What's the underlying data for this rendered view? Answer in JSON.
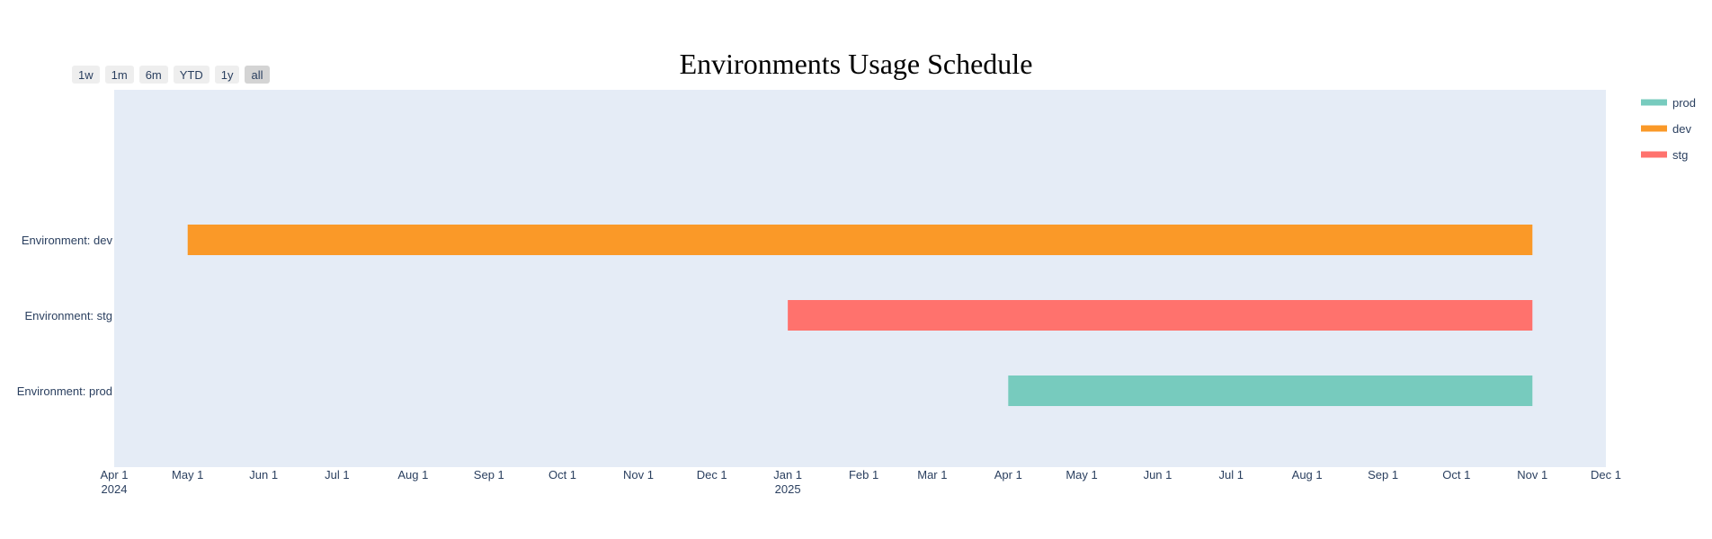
{
  "range_selector": {
    "buttons": [
      "1w",
      "1m",
      "6m",
      "YTD",
      "1y",
      "all"
    ],
    "active": "all"
  },
  "colors": {
    "plot_bg": "#e5ecf6",
    "prod": "#77cbbe",
    "dev": "#fa9928",
    "stg": "#ff726d"
  },
  "chart_data": {
    "type": "gantt",
    "title": "Environments Usage Schedule",
    "xlabel": "",
    "ylabel": "",
    "xlim": [
      "2024-04-01",
      "2024-12-01T00:00:00"
    ],
    "x_range": [
      "2024-04-01",
      "2025-12-01"
    ],
    "x_ticks": [
      {
        "date": "2024-04-01",
        "label": "Apr 1",
        "year": "2024"
      },
      {
        "date": "2024-05-01",
        "label": "May 1"
      },
      {
        "date": "2024-06-01",
        "label": "Jun 1"
      },
      {
        "date": "2024-07-01",
        "label": "Jul 1"
      },
      {
        "date": "2024-08-01",
        "label": "Aug 1"
      },
      {
        "date": "2024-09-01",
        "label": "Sep 1"
      },
      {
        "date": "2024-10-01",
        "label": "Oct 1"
      },
      {
        "date": "2024-11-01",
        "label": "Nov 1"
      },
      {
        "date": "2024-12-01",
        "label": "Dec 1"
      },
      {
        "date": "2025-01-01",
        "label": "Jan 1",
        "year": "2025"
      },
      {
        "date": "2025-02-01",
        "label": "Feb 1"
      },
      {
        "date": "2025-03-01",
        "label": "Mar 1"
      },
      {
        "date": "2025-04-01",
        "label": "Apr 1"
      },
      {
        "date": "2025-05-01",
        "label": "May 1"
      },
      {
        "date": "2025-06-01",
        "label": "Jun 1"
      },
      {
        "date": "2025-07-01",
        "label": "Jul 1"
      },
      {
        "date": "2025-08-01",
        "label": "Aug 1"
      },
      {
        "date": "2025-09-01",
        "label": "Sep 1"
      },
      {
        "date": "2025-10-01",
        "label": "Oct 1"
      },
      {
        "date": "2025-11-01",
        "label": "Nov 1"
      },
      {
        "date": "2025-12-01",
        "label": "Dec 1"
      }
    ],
    "categories": [
      "Environment: dev",
      "Environment: stg",
      "Environment: prod"
    ],
    "series": [
      {
        "name": "prod",
        "category": "Environment: prod",
        "start": "2025-04-01",
        "end": "2025-11-01"
      },
      {
        "name": "dev",
        "category": "Environment: dev",
        "start": "2024-05-01",
        "end": "2025-11-01"
      },
      {
        "name": "stg",
        "category": "Environment: stg",
        "start": "2025-01-01",
        "end": "2025-11-01"
      }
    ],
    "legend": [
      "prod",
      "dev",
      "stg"
    ],
    "legend_position": "top-right",
    "grid": false
  }
}
